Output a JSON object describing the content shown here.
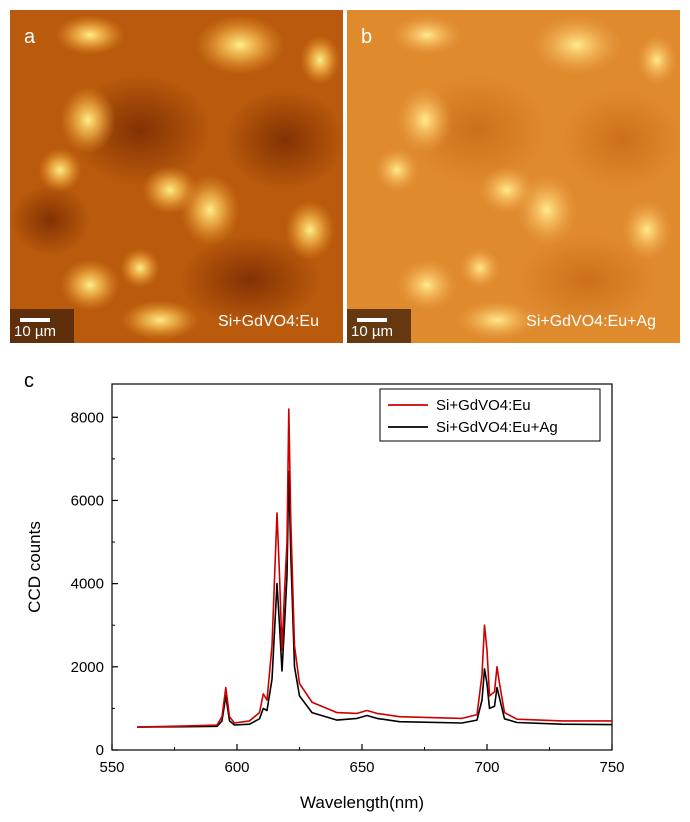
{
  "panels": {
    "a": {
      "letter": "a",
      "scale": "10 µm",
      "sample": "Si+GdVO4:Eu"
    },
    "b": {
      "letter": "b",
      "scale": "10 µm",
      "sample": "Si+GdVO4:Eu+Ag"
    },
    "c": {
      "letter": "c"
    }
  },
  "colors": {
    "map_dark": "#8c3404",
    "map_mid": "#c8670d",
    "map_bright": "#ffe680",
    "series_eu": "#cc0000",
    "series_eu_ag": "#000000"
  },
  "chart_data": {
    "type": "line",
    "title": "",
    "xlabel": "Wavelength(nm)",
    "ylabel": "CCD counts",
    "xlim": [
      550,
      750
    ],
    "ylim": [
      0,
      8800
    ],
    "xticks": [
      550,
      600,
      650,
      700,
      750
    ],
    "yticks": [
      0,
      2000,
      4000,
      6000,
      8000
    ],
    "legend_position": "top-right",
    "grid": false,
    "series": [
      {
        "name": "Si+GdVO4:Eu",
        "color": "#cc0000",
        "points": [
          [
            560,
            550
          ],
          [
            580,
            580
          ],
          [
            592,
            600
          ],
          [
            594,
            800
          ],
          [
            595.5,
            1500
          ],
          [
            597,
            800
          ],
          [
            599,
            650
          ],
          [
            605,
            700
          ],
          [
            609,
            900
          ],
          [
            610.5,
            1350
          ],
          [
            612,
            1200
          ],
          [
            614,
            2500
          ],
          [
            616,
            5700
          ],
          [
            617,
            4200
          ],
          [
            618,
            2400
          ],
          [
            619,
            3800
          ],
          [
            620,
            5000
          ],
          [
            620.7,
            8200
          ],
          [
            621.5,
            5500
          ],
          [
            623,
            2500
          ],
          [
            625,
            1600
          ],
          [
            630,
            1150
          ],
          [
            640,
            900
          ],
          [
            648,
            880
          ],
          [
            652,
            950
          ],
          [
            656,
            880
          ],
          [
            665,
            800
          ],
          [
            690,
            760
          ],
          [
            696,
            850
          ],
          [
            698,
            1800
          ],
          [
            699,
            3000
          ],
          [
            700,
            2400
          ],
          [
            701,
            1300
          ],
          [
            703,
            1400
          ],
          [
            704,
            2000
          ],
          [
            705,
            1600
          ],
          [
            707,
            900
          ],
          [
            712,
            740
          ],
          [
            730,
            700
          ],
          [
            748,
            700
          ],
          [
            750,
            700
          ]
        ]
      },
      {
        "name": "Si+GdVO4:Eu+Ag",
        "color": "#000000",
        "points": [
          [
            560,
            550
          ],
          [
            580,
            560
          ],
          [
            592,
            570
          ],
          [
            594,
            700
          ],
          [
            595.5,
            1300
          ],
          [
            597,
            700
          ],
          [
            599,
            600
          ],
          [
            605,
            620
          ],
          [
            609,
            750
          ],
          [
            610.5,
            1000
          ],
          [
            612,
            950
          ],
          [
            614,
            1700
          ],
          [
            616,
            4000
          ],
          [
            617,
            3000
          ],
          [
            618,
            1900
          ],
          [
            619,
            3000
          ],
          [
            620,
            4200
          ],
          [
            620.7,
            6700
          ],
          [
            621.5,
            4700
          ],
          [
            623,
            2000
          ],
          [
            625,
            1300
          ],
          [
            630,
            900
          ],
          [
            640,
            720
          ],
          [
            648,
            760
          ],
          [
            652,
            830
          ],
          [
            656,
            760
          ],
          [
            665,
            680
          ],
          [
            690,
            650
          ],
          [
            696,
            720
          ],
          [
            698,
            1200
          ],
          [
            699,
            1950
          ],
          [
            700,
            1600
          ],
          [
            701,
            1000
          ],
          [
            703,
            1050
          ],
          [
            704,
            1500
          ],
          [
            705,
            1250
          ],
          [
            707,
            750
          ],
          [
            712,
            660
          ],
          [
            730,
            620
          ],
          [
            748,
            610
          ],
          [
            750,
            610
          ]
        ]
      }
    ]
  }
}
